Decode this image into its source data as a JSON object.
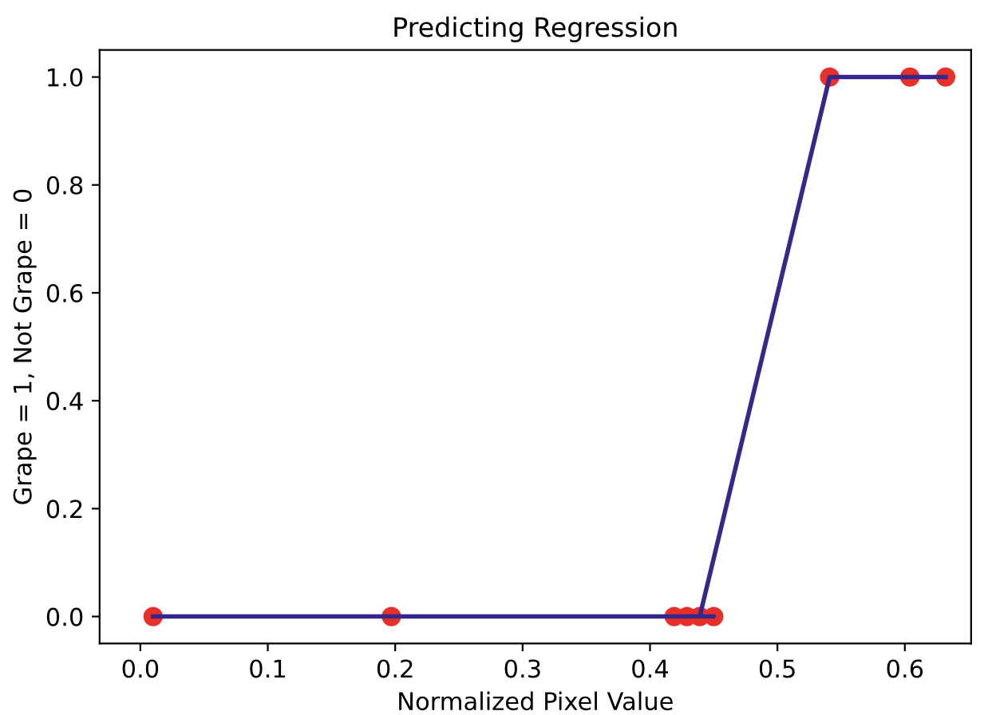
{
  "chart_data": {
    "type": "scatter",
    "title": "Predicting Regression",
    "xlabel": "Normalized Pixel Value",
    "ylabel": "Grape = 1, Not Grape = 0",
    "series": [
      {
        "color": "#e8302a",
        "marker": "circle",
        "x": [
          0.01,
          0.197,
          0.419,
          0.429,
          0.439,
          0.45,
          0.541,
          0.604,
          0.632
        ],
        "values": [
          0,
          0,
          0,
          0,
          0,
          0,
          1,
          1,
          1
        ]
      },
      {
        "type": "line",
        "color": "#35288c",
        "marker": "none",
        "line_style": "solid",
        "x": [
          0.01,
          0.197,
          0.419,
          0.429,
          0.45,
          0.439,
          0.541,
          0.604,
          0.632
        ],
        "values": [
          0,
          0,
          0,
          0,
          0,
          0,
          1,
          1,
          1
        ]
      }
    ],
    "xlim": [
      -0.032,
      0.652
    ],
    "ylim": [
      -0.05,
      1.05
    ],
    "xticks": [
      {
        "value": 0,
        "label": "0.0"
      },
      0.1,
      0.2,
      0.3,
      0.4,
      0.5,
      0.6
    ],
    "yticks": [
      {
        "value": 0,
        "label": "0.0"
      },
      0.2,
      0.4,
      0.6,
      0.8,
      {
        "value": 1,
        "label": "1.0"
      }
    ],
    "grid": false
  }
}
